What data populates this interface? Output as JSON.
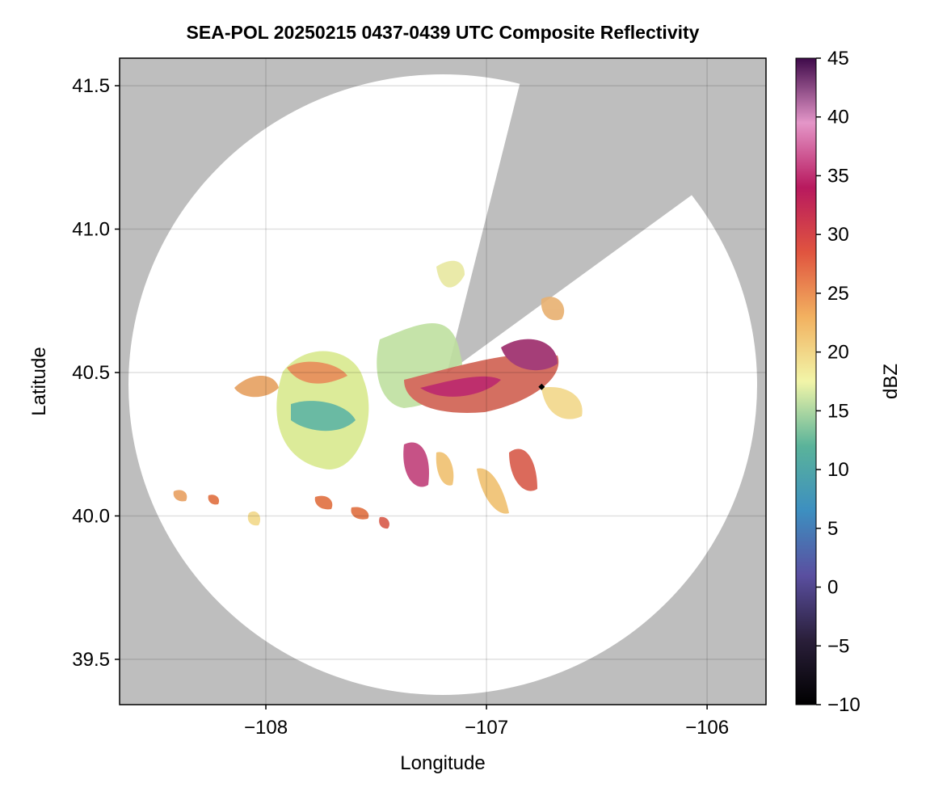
{
  "chart_data": {
    "type": "radar-map",
    "title": "SEA-POL 20250215 0437-0439 UTC Composite Reflectivity",
    "xlabel": "Longitude",
    "ylabel": "Latitude",
    "xlim": [
      -108.663,
      -105.733
    ],
    "ylim": [
      39.342,
      41.596
    ],
    "xticks": [
      {
        "value": -108,
        "label": "−108"
      },
      {
        "value": -107,
        "label": "−107"
      },
      {
        "value": -106,
        "label": "−106"
      }
    ],
    "yticks": [
      39.5,
      {
        "value": 40,
        "label": "40.0"
      },
      40.5,
      {
        "value": 41,
        "label": "41.0"
      },
      41.5
    ],
    "grid": true,
    "colorbar": {
      "label": "dBZ",
      "lim": [
        -10,
        45
      ],
      "ticks": [
        {
          "value": -10,
          "label": "−10"
        },
        {
          "value": -5,
          "label": "−5"
        },
        0,
        5,
        10,
        15,
        20,
        25,
        30,
        35,
        40,
        45
      ],
      "colormap": [
        "#000000",
        "#2a1f3a",
        "#5a4fa0",
        "#3d8fc0",
        "#5ab39a",
        "#f2f5a8",
        "#f2b160",
        "#e0543f",
        "#b8195e",
        "#e496c8",
        "#3f0a4a"
      ]
    },
    "site": {
      "x": -106.75,
      "y": 40.45
    }
  }
}
